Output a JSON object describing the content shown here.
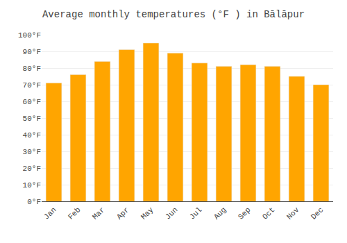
{
  "chart_data": {
    "type": "bar",
    "title": "Average monthly temperatures (°F ) in Bālāpur",
    "categories": [
      "Jan",
      "Feb",
      "Mar",
      "Apr",
      "May",
      "Jun",
      "Jul",
      "Aug",
      "Sep",
      "Oct",
      "Nov",
      "Dec"
    ],
    "values": [
      71,
      76,
      84,
      91,
      95,
      89,
      83,
      81,
      82,
      81,
      75,
      70
    ],
    "color": "#FFA500",
    "ylim": [
      0,
      100
    ],
    "yticks": [
      {
        "value": 0,
        "label": "0°F"
      },
      {
        "value": 10,
        "label": "10°F"
      },
      {
        "value": 20,
        "label": "20°F"
      },
      {
        "value": 30,
        "label": "30°F"
      },
      {
        "value": 40,
        "label": "40°F"
      },
      {
        "value": 50,
        "label": "50°F"
      },
      {
        "value": 60,
        "label": "60°F"
      },
      {
        "value": 70,
        "label": "70°F"
      },
      {
        "value": 80,
        "label": "80°F"
      },
      {
        "value": 90,
        "label": "90°F"
      },
      {
        "value": 100,
        "label": "100°F"
      }
    ],
    "grid": true
  }
}
